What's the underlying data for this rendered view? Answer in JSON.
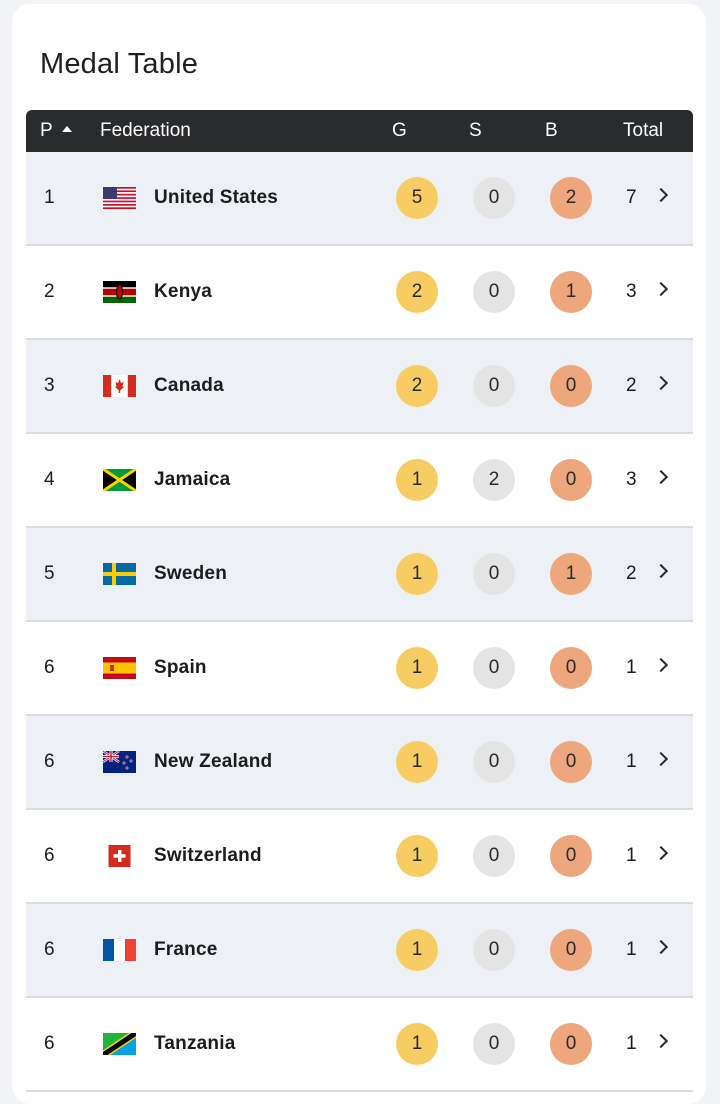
{
  "title": "Medal Table",
  "header": {
    "position": "P",
    "federation": "Federation",
    "gold": "G",
    "silver": "S",
    "bronze": "B",
    "total": "Total"
  },
  "colors": {
    "gold": "#f7cd63",
    "silver": "#e4e4e4",
    "bronze": "#eea67c",
    "header_bg": "#2a2b2d",
    "row_shade": "#edf0f4"
  },
  "rows": [
    {
      "pos": "1",
      "name": "United States",
      "flag": "us-flag-icon",
      "g": "5",
      "s": "0",
      "b": "2",
      "total": "7"
    },
    {
      "pos": "2",
      "name": "Kenya",
      "flag": "kenya-flag-icon",
      "g": "2",
      "s": "0",
      "b": "1",
      "total": "3"
    },
    {
      "pos": "3",
      "name": "Canada",
      "flag": "canada-flag-icon",
      "g": "2",
      "s": "0",
      "b": "0",
      "total": "2"
    },
    {
      "pos": "4",
      "name": "Jamaica",
      "flag": "jamaica-flag-icon",
      "g": "1",
      "s": "2",
      "b": "0",
      "total": "3"
    },
    {
      "pos": "5",
      "name": "Sweden",
      "flag": "sweden-flag-icon",
      "g": "1",
      "s": "0",
      "b": "1",
      "total": "2"
    },
    {
      "pos": "6",
      "name": "Spain",
      "flag": "spain-flag-icon",
      "g": "1",
      "s": "0",
      "b": "0",
      "total": "1"
    },
    {
      "pos": "6",
      "name": "New Zealand",
      "flag": "new-zealand-flag-icon",
      "g": "1",
      "s": "0",
      "b": "0",
      "total": "1"
    },
    {
      "pos": "6",
      "name": "Switzerland",
      "flag": "switzerland-flag-icon",
      "g": "1",
      "s": "0",
      "b": "0",
      "total": "1"
    },
    {
      "pos": "6",
      "name": "France",
      "flag": "france-flag-icon",
      "g": "1",
      "s": "0",
      "b": "0",
      "total": "1"
    },
    {
      "pos": "6",
      "name": "Tanzania",
      "flag": "tanzania-flag-icon",
      "g": "1",
      "s": "0",
      "b": "0",
      "total": "1"
    }
  ]
}
